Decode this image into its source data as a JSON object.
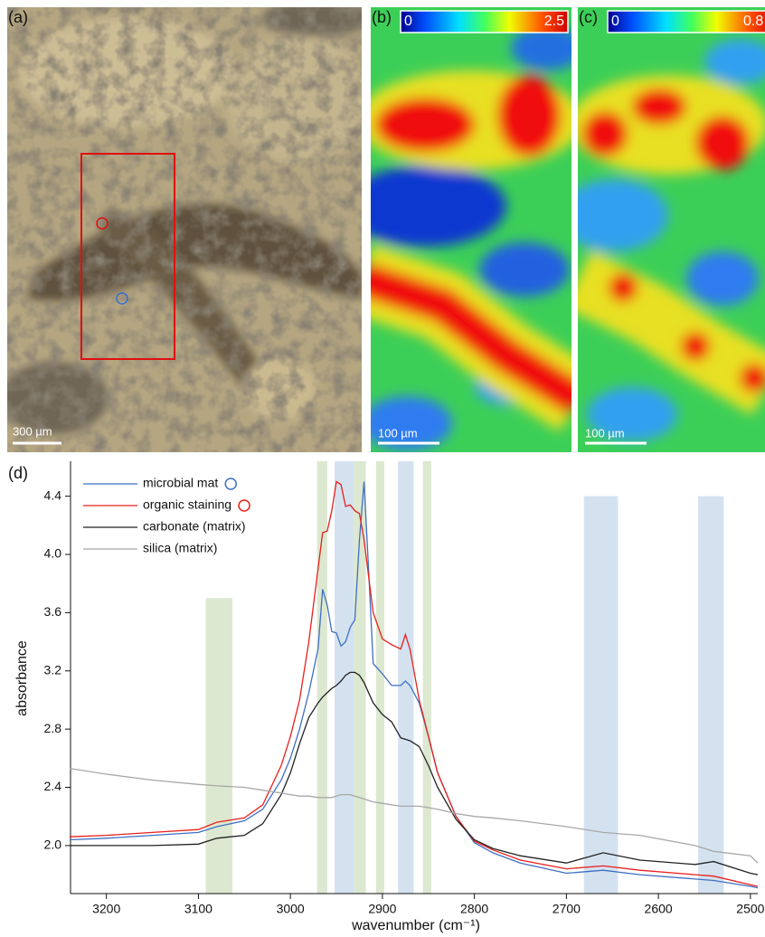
{
  "panels": [
    {
      "label": "(a)",
      "scale_bar": "300 µm"
    },
    {
      "label": "(b)",
      "colorbar": [
        0,
        2.5
      ],
      "scale_bar": "100 µm"
    },
    {
      "label": "(c)",
      "colorbar": [
        0,
        0.8
      ],
      "scale_bar": "100 µm"
    }
  ],
  "chart_data": {
    "type": "line",
    "label": "(d)",
    "x_label": "wavenumber (cm⁻¹)",
    "y_label": "absorbance",
    "xlim": [
      3239,
      2492
    ],
    "ylim": [
      1.67,
      4.64
    ],
    "xticks": [
      3200,
      3100,
      3000,
      2900,
      2800,
      2700,
      2600,
      2500
    ],
    "yticks": [
      {
        "value": 2,
        "label": "2.0"
      },
      2.4,
      2.8,
      3.2,
      3.6,
      {
        "value": 4,
        "label": "4.0"
      },
      4.4
    ],
    "bands": [
      {
        "x": [
          3092,
          3063
        ],
        "top": 3.7,
        "color": "#dce8d0"
      },
      {
        "x": [
          2971,
          2960
        ],
        "top": 4.64,
        "color": "#dce8d0"
      },
      {
        "x": [
          2952,
          2931
        ],
        "top": 4.64,
        "color": "#d4e2f0"
      },
      {
        "x": [
          2931,
          2918
        ],
        "top": 4.64,
        "color": "#dce8d0"
      },
      {
        "x": [
          2907,
          2898
        ],
        "top": 4.64,
        "color": "#dce8d0"
      },
      {
        "x": [
          2883,
          2866
        ],
        "top": 4.64,
        "color": "#d4e2f0"
      },
      {
        "x": [
          2856,
          2847
        ],
        "top": 4.64,
        "color": "#dce8d0"
      },
      {
        "x": [
          2681,
          2644
        ],
        "top": 4.4,
        "color": "#d4e2f0"
      },
      {
        "x": [
          2557,
          2529
        ],
        "top": 4.4,
        "color": "#d4e2f0"
      }
    ],
    "x": [
      3240,
      3200,
      3150,
      3100,
      3080,
      3050,
      3030,
      3010,
      3000,
      2990,
      2980,
      2970,
      2965,
      2960,
      2955,
      2950,
      2945,
      2940,
      2935,
      2930,
      2925,
      2920,
      2915,
      2910,
      2900,
      2890,
      2880,
      2875,
      2870,
      2860,
      2850,
      2840,
      2820,
      2800,
      2780,
      2750,
      2700,
      2660,
      2620,
      2560,
      2540,
      2500,
      2492
    ],
    "series": [
      {
        "name": "microbial mat",
        "color": "#3f6fc4",
        "marker": "circle",
        "values": [
          2.04,
          2.05,
          2.07,
          2.09,
          2.13,
          2.17,
          2.25,
          2.45,
          2.6,
          2.8,
          3.05,
          3.35,
          3.76,
          3.65,
          3.47,
          3.46,
          3.37,
          3.4,
          3.5,
          3.55,
          4.1,
          4.5,
          3.9,
          3.25,
          3.18,
          3.1,
          3.1,
          3.13,
          3.1,
          2.98,
          2.75,
          2.5,
          2.2,
          2.02,
          1.95,
          1.88,
          1.81,
          1.83,
          1.8,
          1.77,
          1.76,
          1.72,
          1.71
        ]
      },
      {
        "name": "organic staining",
        "color": "#e8201c",
        "marker": "circle",
        "values": [
          2.06,
          2.07,
          2.09,
          2.11,
          2.16,
          2.19,
          2.28,
          2.55,
          2.75,
          3.0,
          3.4,
          3.9,
          4.15,
          4.16,
          4.3,
          4.5,
          4.48,
          4.33,
          4.34,
          4.3,
          4.28,
          4.1,
          3.85,
          3.6,
          3.42,
          3.38,
          3.35,
          3.45,
          3.35,
          3.0,
          2.75,
          2.5,
          2.2,
          2.03,
          1.97,
          1.9,
          1.84,
          1.86,
          1.83,
          1.8,
          1.79,
          1.73,
          1.72
        ]
      },
      {
        "name": "carbonate (matrix)",
        "color": "#222222",
        "values": [
          2.0,
          2.0,
          2.0,
          2.01,
          2.05,
          2.07,
          2.15,
          2.35,
          2.5,
          2.7,
          2.88,
          2.98,
          3.02,
          3.05,
          3.08,
          3.1,
          3.13,
          3.17,
          3.19,
          3.19,
          3.17,
          3.12,
          3.05,
          2.98,
          2.9,
          2.85,
          2.74,
          2.73,
          2.72,
          2.68,
          2.55,
          2.4,
          2.18,
          2.04,
          1.98,
          1.93,
          1.88,
          1.95,
          1.9,
          1.87,
          1.89,
          1.81,
          1.8
        ]
      },
      {
        "name": "silica (matrix)",
        "color": "#a8a8a8",
        "values": [
          2.53,
          2.49,
          2.45,
          2.42,
          2.41,
          2.4,
          2.38,
          2.36,
          2.35,
          2.34,
          2.34,
          2.33,
          2.33,
          2.33,
          2.33,
          2.34,
          2.35,
          2.35,
          2.35,
          2.34,
          2.33,
          2.32,
          2.31,
          2.3,
          2.29,
          2.28,
          2.27,
          2.27,
          2.27,
          2.27,
          2.26,
          2.25,
          2.22,
          2.2,
          2.19,
          2.17,
          2.13,
          2.09,
          2.07,
          2.0,
          1.96,
          1.93,
          1.88
        ]
      }
    ]
  }
}
